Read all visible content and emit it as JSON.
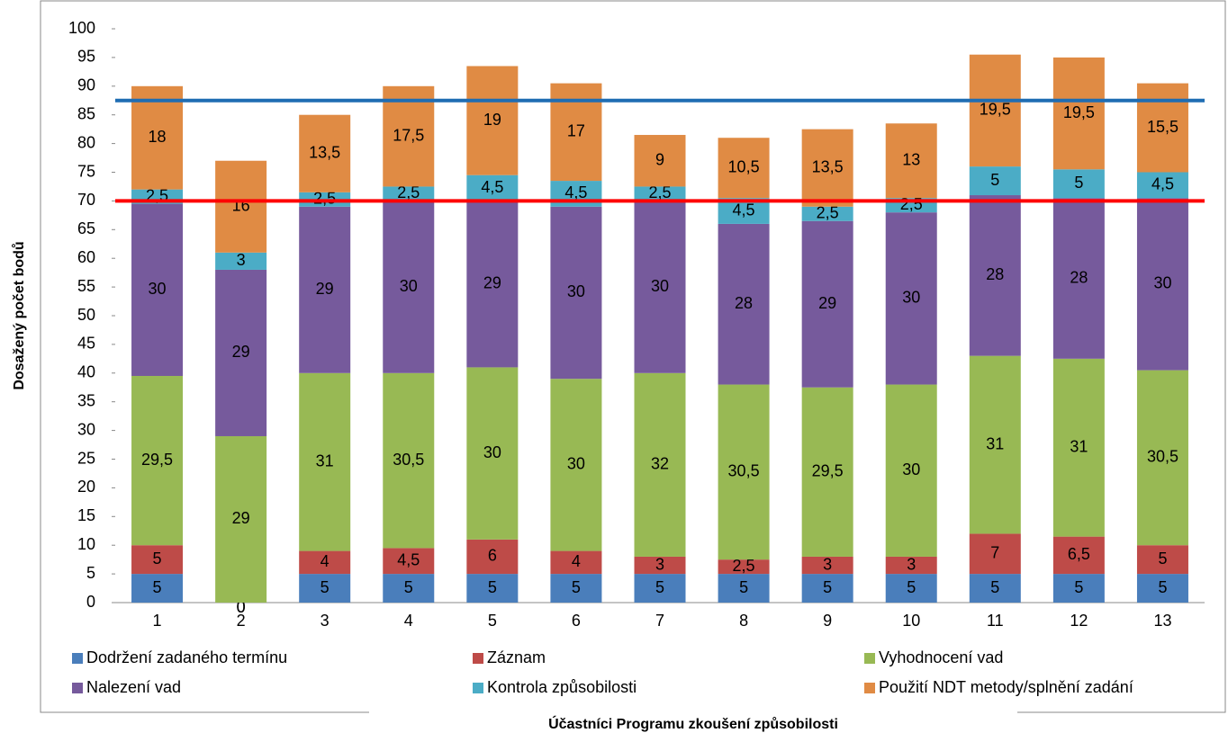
{
  "chart_data": {
    "type": "stacked_bar",
    "y_label": "Dosažený počet bodů",
    "x_label": "Účastníci Programu zkoušení způsobilosti",
    "categories": [
      "1",
      "2",
      "3",
      "4",
      "5",
      "6",
      "7",
      "8",
      "9",
      "10",
      "11",
      "12",
      "13"
    ],
    "ylim": [
      0,
      100
    ],
    "yticks": [
      0,
      5,
      10,
      15,
      20,
      25,
      30,
      35,
      40,
      45,
      50,
      55,
      60,
      65,
      70,
      75,
      80,
      85,
      90,
      95,
      100
    ],
    "series": [
      {
        "name": "Dodržení zadaného termínu",
        "color": "#4a7ebb",
        "values": [
          5,
          0,
          5,
          5,
          5,
          5,
          5,
          5,
          5,
          5,
          5,
          5,
          5
        ]
      },
      {
        "name": "Záznam",
        "color": "#be4b48",
        "values": [
          5,
          0,
          4,
          4.5,
          6,
          4,
          3,
          2.5,
          3,
          3,
          7,
          6.5,
          5
        ],
        "value_labels": [
          "5",
          "0",
          "4",
          "4,5",
          "6",
          "4",
          "3",
          "2,5",
          "3",
          "3",
          "7",
          "6,5",
          "5"
        ]
      },
      {
        "name": "Vyhodnocení vad",
        "color": "#98b954",
        "values": [
          29.5,
          29,
          31,
          30.5,
          30,
          30,
          32,
          30.5,
          29.5,
          30,
          31,
          31,
          30.5
        ],
        "value_labels": [
          "29,5",
          "29",
          "31",
          "30,5",
          "30",
          "30",
          "32",
          "30,5",
          "29,5",
          "30",
          "31",
          "31",
          "30,5"
        ]
      },
      {
        "name": "Nalezení vad",
        "color": "#765a9c",
        "values": [
          30,
          29,
          29,
          30,
          29,
          30,
          30,
          28,
          29,
          30,
          28,
          28,
          30
        ]
      },
      {
        "name": "Kontrola způsobilosti",
        "color": "#4bacc6",
        "values": [
          2.5,
          3,
          2.5,
          2.5,
          4.5,
          4.5,
          2.5,
          4.5,
          2.5,
          2.5,
          5,
          5,
          4.5
        ],
        "value_labels": [
          "2,5",
          "3",
          "2,5",
          "2,5",
          "4,5",
          "4,5",
          "2,5",
          "4,5",
          "2,5",
          "2,5",
          "5",
          "5",
          "4,5"
        ]
      },
      {
        "name": "Použití NDT metody/splnění zadání",
        "color": "#e08b44",
        "values": [
          18,
          16,
          13.5,
          17.5,
          19,
          17,
          9,
          10.5,
          13.5,
          13,
          19.5,
          19.5,
          15.5
        ],
        "value_labels": [
          "18",
          "16",
          "13,5",
          "17,5",
          "19",
          "17",
          "9",
          "10,5",
          "13,5",
          "13",
          "19,5",
          "19,5",
          "15,5"
        ]
      }
    ],
    "reference_lines": [
      {
        "value": 87.5,
        "color": "#1f6db3"
      },
      {
        "value": 70,
        "color": "#ff0000"
      }
    ],
    "legend": "bottom"
  }
}
